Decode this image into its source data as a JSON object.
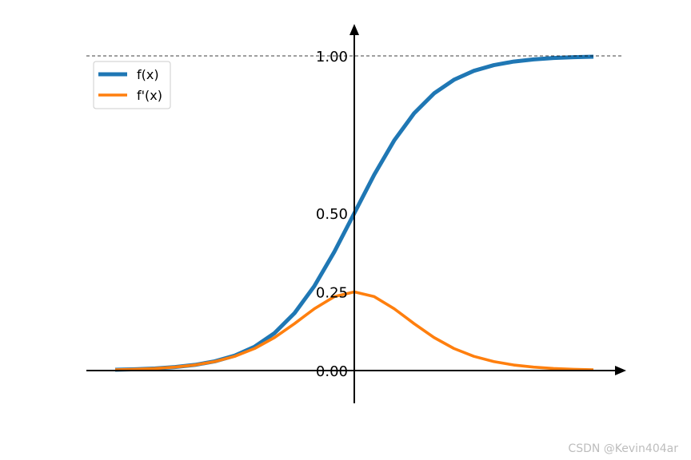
{
  "chart_data": {
    "type": "line",
    "x_range": [
      -6,
      6
    ],
    "ylim": [
      -0.1,
      1.1
    ],
    "yticks": [
      {
        "value": 0.0,
        "label": "0.00"
      },
      {
        "value": 0.25,
        "label": "0.25"
      },
      {
        "value": 0.5,
        "label": "0.50"
      },
      {
        "value": 1.0,
        "label": "1.00"
      }
    ],
    "reference_line": {
      "y": 1.0,
      "style": "dashed",
      "color": "#000000"
    },
    "legend_position": "top-left",
    "grid": false,
    "series": [
      {
        "name": "f(x)",
        "color": "#1f77b4",
        "x": [
          -6,
          -5.5,
          -5,
          -4.5,
          -4,
          -3.5,
          -3,
          -2.5,
          -2,
          -1.5,
          -1,
          -0.5,
          0,
          0.5,
          1,
          1.5,
          2,
          2.5,
          3,
          3.5,
          4,
          4.5,
          5,
          5.5,
          6
        ],
        "values": [
          0.0025,
          0.0041,
          0.0067,
          0.011,
          0.018,
          0.0293,
          0.0474,
          0.0759,
          0.1192,
          0.1824,
          0.2689,
          0.3775,
          0.5,
          0.6225,
          0.7311,
          0.8176,
          0.8808,
          0.9241,
          0.9526,
          0.9707,
          0.982,
          0.989,
          0.9933,
          0.9959,
          0.9975
        ]
      },
      {
        "name": "f'(x)",
        "color": "#ff7f0e",
        "x": [
          -6,
          -5.5,
          -5,
          -4.5,
          -4,
          -3.5,
          -3,
          -2.5,
          -2,
          -1.5,
          -1,
          -0.5,
          0,
          0.5,
          1,
          1.5,
          2,
          2.5,
          3,
          3.5,
          4,
          4.5,
          5,
          5.5,
          6
        ],
        "values": [
          0.0025,
          0.0041,
          0.0066,
          0.0109,
          0.0177,
          0.0285,
          0.0452,
          0.0701,
          0.105,
          0.1491,
          0.1966,
          0.235,
          0.25,
          0.235,
          0.1966,
          0.1491,
          0.105,
          0.0701,
          0.0452,
          0.0285,
          0.0177,
          0.0109,
          0.0066,
          0.0041,
          0.0025
        ]
      }
    ]
  },
  "watermark": "CSDN @Kevin404ar"
}
